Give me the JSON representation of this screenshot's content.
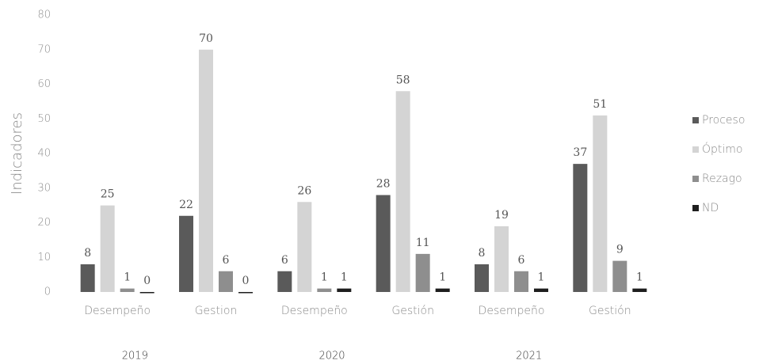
{
  "chart_data": {
    "type": "bar",
    "y_label": "Indicadores",
    "categories": [
      "Desempeño",
      "Gestion",
      "Desempeño",
      "Gestión",
      "Desempeño",
      "Gestión"
    ],
    "category_groups": [
      "2019",
      "2020",
      "2021"
    ],
    "series": [
      {
        "name": "Proceso",
        "color": "#5a5a5a",
        "values": [
          8,
          22,
          6,
          28,
          8,
          37
        ]
      },
      {
        "name": "Óptimo",
        "color": "#d4d4d4",
        "values": [
          25,
          70,
          26,
          58,
          19,
          51
        ]
      },
      {
        "name": "Rezago",
        "color": "#8e8e8e",
        "values": [
          1,
          6,
          1,
          11,
          6,
          9
        ]
      },
      {
        "name": "ND",
        "color": "#1e1e1e",
        "values": [
          0,
          0,
          1,
          1,
          1,
          1
        ]
      }
    ],
    "ylim": [
      0,
      80
    ],
    "yticks": [
      0,
      10,
      20,
      30,
      40,
      50,
      60,
      70,
      80
    ],
    "grid": false,
    "legend": "right"
  }
}
